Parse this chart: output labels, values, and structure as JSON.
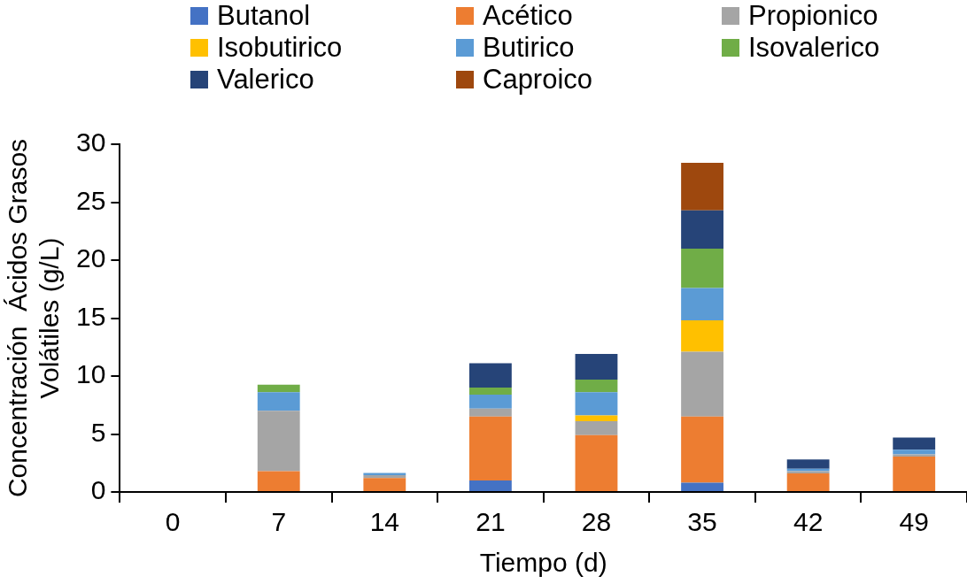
{
  "chart_data": {
    "type": "bar",
    "stacked": true,
    "xlabel": "Tiempo (d)",
    "ylabel": "Concentración  Ácidos Grasos\nVolátiles (g/L)",
    "categories": [
      "0",
      "7",
      "14",
      "21",
      "28",
      "35",
      "42",
      "49"
    ],
    "series": [
      {
        "name": "Butanol",
        "color": "#4472c4",
        "values": [
          0,
          0,
          0,
          1.0,
          0,
          0.8,
          0,
          0
        ]
      },
      {
        "name": "Acético",
        "color": "#ed7d31",
        "values": [
          0,
          1.8,
          1.2,
          5.5,
          4.9,
          5.7,
          1.6,
          3.05
        ]
      },
      {
        "name": "Propionico",
        "color": "#a5a5a5",
        "values": [
          0,
          5.2,
          0.25,
          0.7,
          1.2,
          5.6,
          0.2,
          0.2
        ]
      },
      {
        "name": "Isobutirico",
        "color": "#ffc000",
        "values": [
          0,
          0,
          0,
          0,
          0.5,
          2.7,
          0,
          0
        ]
      },
      {
        "name": "Butirico",
        "color": "#5b9bd5",
        "values": [
          0,
          1.6,
          0.2,
          1.2,
          2.0,
          2.8,
          0.2,
          0.4
        ]
      },
      {
        "name": "Isovalerico",
        "color": "#70ad47",
        "values": [
          0,
          0.65,
          0,
          0.6,
          1.1,
          3.4,
          0,
          0
        ]
      },
      {
        "name": "Valerico",
        "color": "#264478",
        "values": [
          0,
          0,
          0,
          2.1,
          2.2,
          3.3,
          0.8,
          1.05
        ]
      },
      {
        "name": "Caproico",
        "color": "#9e480e",
        "values": [
          0,
          0,
          0,
          0,
          0,
          4.1,
          0,
          0
        ]
      }
    ],
    "ylim": [
      0,
      30
    ],
    "yticks": [
      0,
      5,
      10,
      15,
      20,
      25,
      30
    ],
    "grid": false,
    "legend": "top"
  }
}
